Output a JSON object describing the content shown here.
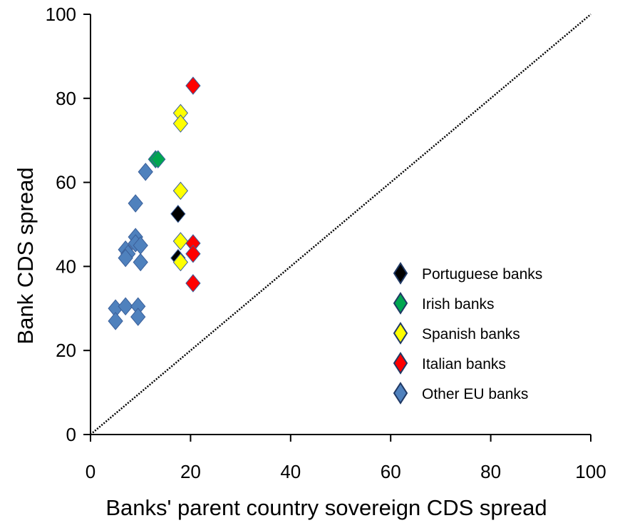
{
  "chart_data": {
    "type": "scatter",
    "title": "",
    "xlabel": "Banks' parent country sovereign CDS spread",
    "ylabel": "Bank CDS spread",
    "xlim": [
      0,
      100
    ],
    "ylim": [
      0,
      100
    ],
    "x_ticks": [
      "0",
      "20",
      "40",
      "60",
      "80",
      "100"
    ],
    "y_ticks": [
      "0",
      "20",
      "40",
      "60",
      "80",
      "100"
    ],
    "grid": false,
    "legend_position": "right",
    "reference_line": {
      "style": "dotted",
      "from": [
        0,
        0
      ],
      "to": [
        100,
        100
      ]
    },
    "series": [
      {
        "name": "Portuguese banks",
        "color": "#000000",
        "marker": "diamond",
        "points": [
          [
            17.5,
            52.5
          ],
          [
            17.5,
            42
          ]
        ]
      },
      {
        "name": "Irish banks",
        "color": "#00A650",
        "marker": "diamond",
        "points": [
          [
            13,
            65.5
          ],
          [
            13.5,
            65.5
          ]
        ]
      },
      {
        "name": "Spanish banks",
        "color": "#FFFF00",
        "marker": "diamond",
        "points": [
          [
            18,
            76.5
          ],
          [
            18,
            74
          ],
          [
            18,
            58
          ],
          [
            18,
            46
          ],
          [
            18,
            41
          ]
        ]
      },
      {
        "name": "Italian banks",
        "color": "#FF0000",
        "marker": "diamond",
        "points": [
          [
            20.5,
            83
          ],
          [
            20.5,
            45.5
          ],
          [
            20.5,
            43
          ],
          [
            20.5,
            36
          ]
        ]
      },
      {
        "name": "Other EU banks",
        "color": "#4F81BD",
        "marker": "diamond",
        "points": [
          [
            11,
            62.5
          ],
          [
            9,
            55
          ],
          [
            9,
            47
          ],
          [
            9,
            45.5
          ],
          [
            10,
            45
          ],
          [
            7,
            44
          ],
          [
            7.5,
            43
          ],
          [
            7,
            42
          ],
          [
            10,
            41
          ],
          [
            5,
            30
          ],
          [
            7,
            30.5
          ],
          [
            9.5,
            30.5
          ],
          [
            5,
            27
          ],
          [
            9.5,
            28
          ]
        ]
      }
    ]
  }
}
